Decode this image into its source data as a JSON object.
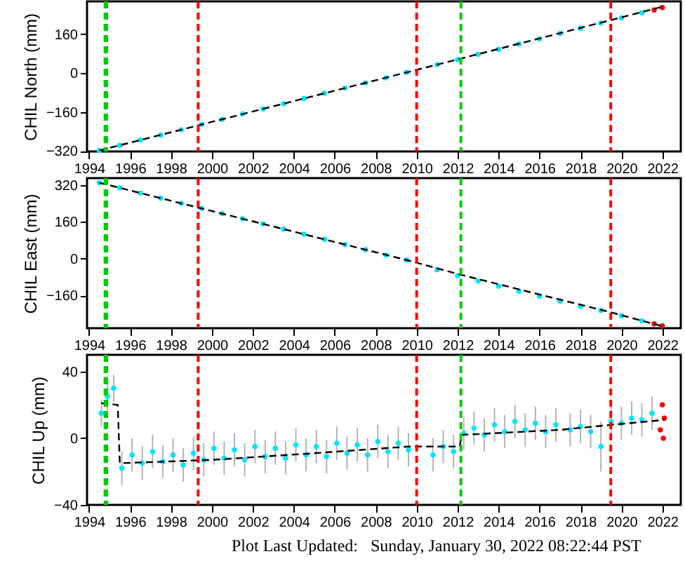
{
  "chart_data": [
    {
      "type": "scatter",
      "ylabel": "CHIL North (mm)",
      "xlim": [
        1993.9,
        2022.9
      ],
      "xticks": [
        1994,
        1996,
        1998,
        2000,
        2002,
        2004,
        2006,
        2008,
        2010,
        2012,
        2014,
        2016,
        2018,
        2020,
        2022
      ],
      "ylim": [
        -322,
        295
      ],
      "yticks": [
        -320,
        -160,
        0,
        160
      ],
      "marker": "circle",
      "series": [
        {
          "color": "#00e5ff",
          "x": [
            1994.5,
            1995.5,
            1996.5,
            1997.5,
            1998.5,
            1999.5,
            2000.5,
            2001.5,
            2002.5,
            2003.5,
            2004.5,
            2005.5,
            2006.5,
            2007.5,
            2008.5,
            2009.5,
            2011.0,
            2012.0,
            2013.0,
            2014.0,
            2015.0,
            2016.0,
            2017.0,
            2018.0,
            2019.0,
            2020.0,
            2021.0
          ],
          "values": [
            -318,
            -297,
            -275,
            -254,
            -233,
            -211,
            -190,
            -168,
            -147,
            -126,
            -104,
            -83,
            -61,
            -40,
            -19,
            3,
            35,
            56,
            77,
            98,
            120,
            141,
            163,
            184,
            206,
            227,
            248
          ]
        },
        {
          "color": "#ff0000",
          "x": [
            2021.6,
            2022.0
          ],
          "values": [
            260,
            270
          ]
        },
        {
          "type": "line",
          "marker": "none",
          "color": "#000000",
          "line_style": "dashed",
          "x": [
            1994.5,
            2009.6,
            2012.16,
            2019.48,
            2022.1
          ],
          "values": [
            -318,
            5,
            60,
            218,
            275
          ]
        }
      ],
      "ref_lines": [
        {
          "axis": "x",
          "value": 1994.78,
          "color": "#00cc00",
          "line_style": "dashed"
        },
        {
          "axis": "x",
          "value": 1994.86,
          "color": "#00cc00",
          "line_style": "dashed"
        },
        {
          "axis": "x",
          "value": 1999.33,
          "color": "#ff0000",
          "line_style": "dashed"
        },
        {
          "axis": "x",
          "value": 2010.0,
          "color": "#ff0000",
          "line_style": "dashed"
        },
        {
          "axis": "x",
          "value": 2012.16,
          "color": "#00cc00",
          "line_style": "dashed"
        },
        {
          "axis": "x",
          "value": 2019.48,
          "color": "#ff0000",
          "line_style": "dashed"
        }
      ]
    },
    {
      "type": "scatter",
      "ylabel": "CHIL East (mm)",
      "xlim": [
        1993.9,
        2022.9
      ],
      "xticks": [
        1994,
        1996,
        1998,
        2000,
        2002,
        2004,
        2006,
        2008,
        2010,
        2012,
        2014,
        2016,
        2018,
        2020,
        2022
      ],
      "ylim": [
        -302,
        350
      ],
      "yticks": [
        -160,
        0,
        160,
        320
      ],
      "marker": "circle",
      "series": [
        {
          "color": "#00e5ff",
          "x": [
            1994.5,
            1995.5,
            1996.5,
            1997.5,
            1998.5,
            1999.5,
            2000.5,
            2001.5,
            2002.5,
            2003.5,
            2004.5,
            2005.5,
            2006.5,
            2007.5,
            2008.5,
            2009.5,
            2011.0,
            2012.0,
            2013.0,
            2014.0,
            2015.0,
            2016.0,
            2017.0,
            2018.0,
            2019.0,
            2020.0,
            2021.0
          ],
          "values": [
            330,
            308,
            285,
            263,
            240,
            218,
            196,
            173,
            151,
            128,
            106,
            84,
            61,
            39,
            16,
            -6,
            -48,
            -74,
            -97,
            -119,
            -141,
            -163,
            -185,
            -207,
            -225,
            -248,
            -270
          ]
        },
        {
          "color": "#ff0000",
          "x": [
            2021.6,
            2022.0
          ],
          "values": [
            -283,
            -292
          ]
        },
        {
          "type": "line",
          "marker": "none",
          "color": "#000000",
          "line_style": "dashed",
          "x": [
            1994.5,
            2009.6,
            2012.16,
            2019.48,
            2022.1
          ],
          "values": [
            330,
            -8,
            -70,
            -233,
            -296
          ]
        }
      ],
      "ref_lines": [
        {
          "axis": "x",
          "value": 1994.78,
          "color": "#00cc00",
          "line_style": "dashed"
        },
        {
          "axis": "x",
          "value": 1994.86,
          "color": "#00cc00",
          "line_style": "dashed"
        },
        {
          "axis": "x",
          "value": 1999.33,
          "color": "#ff0000",
          "line_style": "dashed"
        },
        {
          "axis": "x",
          "value": 2010.0,
          "color": "#ff0000",
          "line_style": "dashed"
        },
        {
          "axis": "x",
          "value": 2012.16,
          "color": "#00cc00",
          "line_style": "dashed"
        },
        {
          "axis": "x",
          "value": 2019.48,
          "color": "#ff0000",
          "line_style": "dashed"
        }
      ]
    },
    {
      "type": "scatter",
      "ylabel": "CHIL Up (mm)",
      "xlim": [
        1993.9,
        2022.9
      ],
      "xticks": [
        1994,
        1996,
        1998,
        2000,
        2002,
        2004,
        2006,
        2008,
        2010,
        2012,
        2014,
        2016,
        2018,
        2020,
        2022
      ],
      "ylim": [
        -40,
        50
      ],
      "yticks": [
        -40,
        0,
        40
      ],
      "marker": "circle",
      "annotations": [
        "Plot Last Updated:   Sunday, January 30, 2022 08:22:44 PST"
      ],
      "series": [
        {
          "color": "#00e5ff",
          "x": [
            1994.6,
            1994.9,
            1995.2,
            1995.6,
            1996.1,
            1996.6,
            1997.1,
            1997.6,
            1998.1,
            1998.6,
            1999.1,
            1999.6,
            2000.1,
            2000.6,
            2001.1,
            2001.6,
            2002.1,
            2002.6,
            2003.1,
            2003.6,
            2004.1,
            2004.6,
            2005.1,
            2005.6,
            2006.1,
            2006.6,
            2007.1,
            2007.6,
            2008.1,
            2008.6,
            2009.1,
            2009.6,
            2010.8,
            2011.3,
            2011.8,
            2012.3,
            2012.8,
            2013.3,
            2013.8,
            2014.3,
            2014.8,
            2015.3,
            2015.8,
            2016.3,
            2016.8,
            2017.5,
            2018.0,
            2018.5,
            2019.0,
            2019.5,
            2020.0,
            2020.5,
            2021.0,
            2021.5
          ],
          "values": [
            15,
            25,
            30,
            -18,
            -10,
            -15,
            -8,
            -14,
            -10,
            -16,
            -9,
            -13,
            -6,
            -12,
            -7,
            -13,
            -5,
            -11,
            -6,
            -12,
            -4,
            -10,
            -5,
            -11,
            -3,
            -9,
            -4,
            -10,
            -2,
            -8,
            -3,
            -7,
            -10,
            -5,
            -8,
            3,
            6,
            2,
            8,
            4,
            10,
            5,
            9,
            4,
            8,
            5,
            7,
            4,
            -5,
            10,
            9,
            12,
            11,
            15
          ],
          "errors": [
            8,
            8,
            8,
            10,
            10,
            10,
            10,
            10,
            10,
            10,
            10,
            10,
            10,
            10,
            10,
            10,
            10,
            10,
            10,
            10,
            10,
            10,
            10,
            10,
            10,
            10,
            10,
            10,
            10,
            10,
            10,
            10,
            10,
            10,
            10,
            10,
            10,
            10,
            10,
            10,
            10,
            10,
            10,
            10,
            10,
            10,
            10,
            10,
            15,
            10,
            10,
            10,
            10,
            10
          ]
        },
        {
          "color": "#ff0000",
          "x": [
            2021.9,
            2022.0,
            2022.05,
            2022.1
          ],
          "values": [
            5,
            20,
            0,
            12
          ]
        },
        {
          "type": "line",
          "marker": "none",
          "color": "#000000",
          "line_style": "dashed",
          "x": [
            1994.6,
            1995.4,
            1995.5,
            2000,
            2005,
            2009.6,
            2012.1,
            2012.2,
            2017,
            2019.5,
            2022.1
          ],
          "values": [
            21,
            20,
            -15,
            -13,
            -9,
            -5,
            -5,
            2,
            5,
            8,
            11
          ]
        }
      ],
      "ref_lines": [
        {
          "axis": "x",
          "value": 1994.78,
          "color": "#00cc00",
          "line_style": "dashed"
        },
        {
          "axis": "x",
          "value": 1994.86,
          "color": "#00cc00",
          "line_style": "dashed"
        },
        {
          "axis": "x",
          "value": 1999.33,
          "color": "#ff0000",
          "line_style": "dashed"
        },
        {
          "axis": "x",
          "value": 2010.0,
          "color": "#ff0000",
          "line_style": "dashed"
        },
        {
          "axis": "x",
          "value": 2012.16,
          "color": "#00cc00",
          "line_style": "dashed"
        },
        {
          "axis": "x",
          "value": 2019.48,
          "color": "#ff0000",
          "line_style": "dashed"
        }
      ]
    }
  ]
}
